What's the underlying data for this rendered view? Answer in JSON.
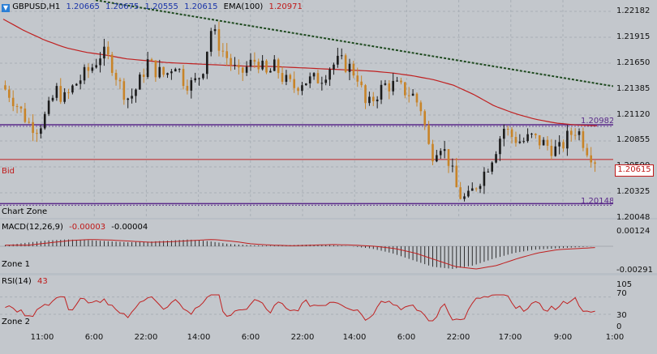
{
  "header": {
    "symbol": "GBPUSD,H1",
    "open": "1.20665",
    "high": "1.20675",
    "low": "1.20555",
    "close": "1.20615",
    "ema_label": "EMA(100)",
    "ema_value": "1.20971"
  },
  "main_pane": {
    "bid_label": "Bid",
    "zone_label": "Chart Zone",
    "bid_price": "1.20615",
    "level_high_label": "1.20982",
    "level_low_label": "1.20148",
    "ticks": [
      "1.22182",
      "1.21915",
      "1.21650",
      "1.21385",
      "1.21120",
      "1.20855",
      "1.20590",
      "1.20325",
      "1.20048"
    ]
  },
  "macd_pane": {
    "label": "MACD(12,26,9)",
    "value1": "-0.00003",
    "value2": "-0.00004",
    "zone_label": "Zone 1",
    "ticks": [
      "0.00124",
      "-0.00291"
    ]
  },
  "rsi_pane": {
    "label": "RSI(14)",
    "value": "43",
    "zone_label": "Zone 2",
    "ticks": [
      "105",
      "70",
      "30",
      "0"
    ]
  },
  "x_axis": {
    "ticks": [
      "11:00",
      "6:00",
      "22:00",
      "14:00",
      "6:00",
      "22:00",
      "14:00",
      "6:00",
      "22:00",
      "17:00",
      "9:00",
      "1:00"
    ]
  },
  "colors": {
    "bull": "#1b1b1b",
    "bear": "#c88428",
    "ema": "#c02020",
    "level": "#5a2a8a",
    "trend": "#1e4a1e",
    "blue_text": "#1a34a8",
    "red_text": "#c01818"
  },
  "chart_data": {
    "type": "candlestick",
    "symbol": "GBPUSD",
    "timeframe": "H1",
    "ylim": [
      1.20048,
      1.22182
    ],
    "close_path": [
      1.214,
      1.213,
      1.2115,
      1.21,
      1.2095,
      1.211,
      1.2135,
      1.2125,
      1.214,
      1.215,
      1.216,
      1.2175,
      1.2165,
      1.214,
      1.2125,
      1.214,
      1.2165,
      1.2155,
      1.215,
      1.2165,
      1.2145,
      1.214,
      1.2155,
      1.22,
      1.218,
      1.2165,
      1.215,
      1.216,
      1.2168,
      1.215,
      1.216,
      1.2145,
      1.2138,
      1.2145,
      1.2145,
      1.2148,
      1.216,
      1.2165,
      1.216,
      1.215,
      1.2115,
      1.213,
      1.214,
      1.214,
      1.2135,
      1.213,
      1.2115,
      1.2065,
      1.208,
      1.206,
      1.2025,
      1.2018,
      1.2035,
      1.205,
      1.207,
      1.2095,
      1.2085,
      1.208,
      1.2085,
      1.208,
      1.2075,
      1.207,
      1.2085,
      1.2095,
      1.2075,
      1.20615
    ],
    "ema_path": [
      1.221,
      1.2198,
      1.2188,
      1.218,
      1.2175,
      1.2172,
      1.2168,
      1.2166,
      1.2164,
      1.2163,
      1.2162,
      1.2161,
      1.216,
      1.216,
      1.2159,
      1.2158,
      1.2157,
      1.2156,
      1.2155,
      1.2153,
      1.215,
      1.2146,
      1.214,
      1.213,
      1.2118,
      1.211,
      1.2104,
      1.21,
      1.2098,
      1.20971
    ],
    "level_high": 1.20982,
    "level_low": 1.20148,
    "bid": 1.20615,
    "trendline": [
      [
        0,
        1.223
      ],
      [
        1,
        1.2139
      ]
    ]
  }
}
